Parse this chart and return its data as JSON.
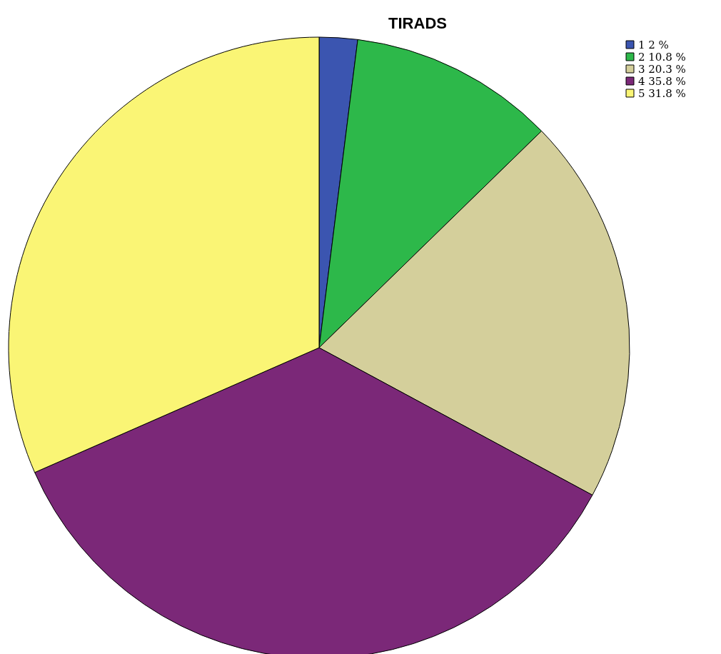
{
  "chart_data": {
    "type": "pie",
    "title": "TIRADS",
    "categories": [
      "1",
      "2",
      "3",
      "4",
      "5"
    ],
    "values": [
      2,
      10.8,
      20.3,
      35.8,
      31.8
    ],
    "value_labels": [
      "2 %",
      "10.8 %",
      "20.3 %",
      "35.8 %",
      "31.8 %"
    ],
    "colors": [
      "#3b55b0",
      "#2db84a",
      "#d4cf9b",
      "#7b2878",
      "#faf575"
    ],
    "legend": "top right"
  }
}
